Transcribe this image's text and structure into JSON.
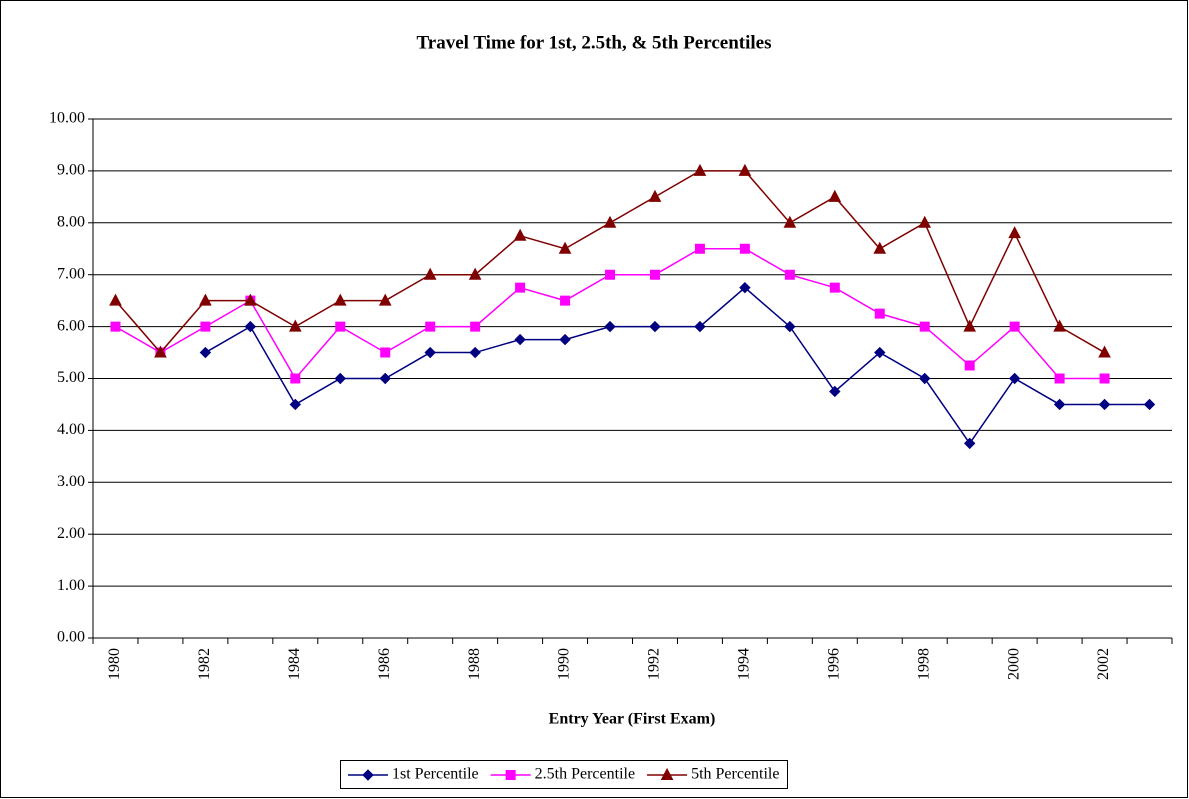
{
  "chart_data": {
    "type": "line",
    "title": "Travel Time for 1st, 2.5th, & 5th Percentiles",
    "x_label": "Entry Year (First Exam)",
    "categories": [
      "1980",
      null,
      "1982",
      null,
      "1984",
      null,
      "1986",
      null,
      "1988",
      null,
      "1990",
      null,
      "1992",
      null,
      "1994",
      null,
      "1996",
      null,
      "1998",
      null,
      "2000",
      null,
      "2002",
      null
    ],
    "series": [
      {
        "name": "1st Percentile",
        "color": "#000080",
        "marker": "diamond",
        "values": [
          null,
          null,
          5.5,
          6.0,
          4.5,
          5.0,
          5.0,
          5.5,
          5.5,
          5.75,
          5.75,
          6.0,
          6.0,
          6.0,
          6.75,
          6.0,
          4.75,
          5.5,
          5.0,
          3.75,
          5.0,
          4.5,
          4.5,
          4.5
        ]
      },
      {
        "name": "2.5th Percentile",
        "color": "#ff00ff",
        "marker": "square",
        "values": [
          6.0,
          5.5,
          6.0,
          6.5,
          5.0,
          6.0,
          5.5,
          6.0,
          6.0,
          6.75,
          6.5,
          7.0,
          7.0,
          7.5,
          7.5,
          7.0,
          6.75,
          6.25,
          6.0,
          5.25,
          6.0,
          5.0,
          5.0,
          null
        ]
      },
      {
        "name": "5th Percentile",
        "color": "#800000",
        "marker": "triangle",
        "values": [
          6.5,
          5.5,
          6.5,
          6.5,
          6.0,
          6.5,
          6.5,
          7.0,
          7.0,
          7.75,
          7.5,
          8.0,
          8.5,
          9.0,
          9.0,
          8.0,
          8.5,
          7.5,
          8.0,
          6.0,
          7.8,
          6.0,
          5.5,
          null
        ]
      }
    ],
    "ylim": [
      0,
      10
    ],
    "yticks": [
      {
        "value": 0,
        "label": "0.00"
      },
      {
        "value": 1,
        "label": "1.00"
      },
      {
        "value": 2,
        "label": "2.00"
      },
      {
        "value": 3,
        "label": "3.00"
      },
      {
        "value": 4,
        "label": "4.00"
      },
      {
        "value": 5,
        "label": "5.00"
      },
      {
        "value": 6,
        "label": "6.00"
      },
      {
        "value": 7,
        "label": "7.00"
      },
      {
        "value": 8,
        "label": "8.00"
      },
      {
        "value": 9,
        "label": "9.00"
      },
      {
        "value": 10,
        "label": "10.00"
      }
    ],
    "grid": true,
    "legend": "bottom"
  }
}
